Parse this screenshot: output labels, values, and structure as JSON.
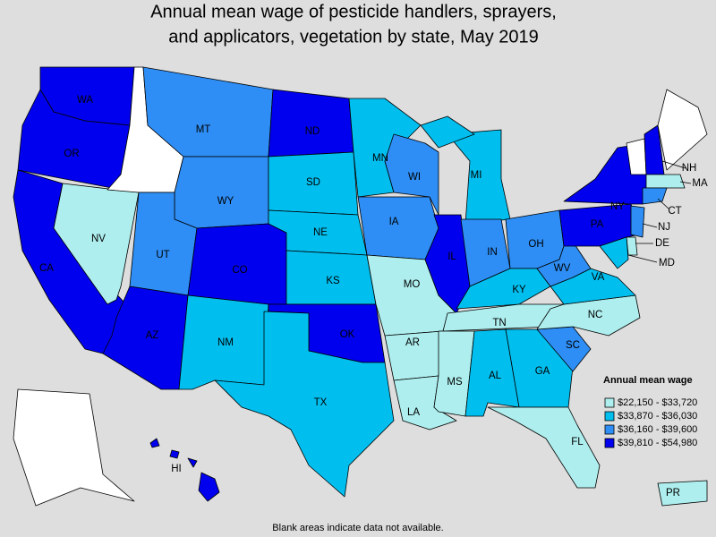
{
  "title": [
    "Annual mean wage of pesticide handlers, sprayers,",
    "and applicators, vegetation by state, May 2019"
  ],
  "legend": {
    "title": "Annual mean wage",
    "bins": [
      {
        "label": "$22,150 - $33,720",
        "color": "#aeeeee"
      },
      {
        "label": "$33,870 - $36,030",
        "color": "#00bfef"
      },
      {
        "label": "$36,160 - $39,600",
        "color": "#2e8ef5"
      },
      {
        "label": "$39,810 - $54,980",
        "color": "#0000ee"
      }
    ]
  },
  "states": [
    {
      "label": "WA",
      "bin": 3
    },
    {
      "label": "OR",
      "bin": 3
    },
    {
      "label": "CA",
      "bin": 3
    },
    {
      "label": "NV",
      "bin": 0
    },
    {
      "label": null,
      "bin": null
    },
    {
      "label": "MT",
      "bin": 2
    },
    {
      "label": "WY",
      "bin": 2
    },
    {
      "label": "UT",
      "bin": 2
    },
    {
      "label": "AZ",
      "bin": 3
    },
    {
      "label": "CO",
      "bin": 3
    },
    {
      "label": "NM",
      "bin": 1
    },
    {
      "label": "ND",
      "bin": 3
    },
    {
      "label": "SD",
      "bin": 1
    },
    {
      "label": "NE",
      "bin": 1
    },
    {
      "label": "KS",
      "bin": 1
    },
    {
      "label": "OK",
      "bin": 3
    },
    {
      "label": "TX",
      "bin": 1
    },
    {
      "label": "MN",
      "bin": 1
    },
    {
      "label": "IA",
      "bin": 2
    },
    {
      "label": "MO",
      "bin": 0
    },
    {
      "label": "AR",
      "bin": 0
    },
    {
      "label": "LA",
      "bin": 0
    },
    {
      "label": "WI",
      "bin": 2
    },
    {
      "label": "IL",
      "bin": 3
    },
    {
      "label": "MI",
      "bin": 1
    },
    {
      "label": "IN",
      "bin": 2
    },
    {
      "label": "OH",
      "bin": 2
    },
    {
      "label": "KY",
      "bin": 1
    },
    {
      "label": "TN",
      "bin": 0
    },
    {
      "label": "MS",
      "bin": 0
    },
    {
      "label": "AL",
      "bin": 1
    },
    {
      "label": "GA",
      "bin": 1
    },
    {
      "label": "FL",
      "bin": 0
    },
    {
      "label": "SC",
      "bin": 2
    },
    {
      "label": "NC",
      "bin": 0
    },
    {
      "label": "VA",
      "bin": 1
    },
    {
      "label": "WV",
      "bin": 2
    },
    {
      "label": "PA",
      "bin": 3
    },
    {
      "label": "NY",
      "bin": 3
    },
    {
      "label": null,
      "bin": null
    },
    {
      "label": "NH",
      "bin": 3
    },
    {
      "label": null,
      "bin": null
    },
    {
      "label": "MA",
      "bin": 0
    },
    {
      "label": "CT",
      "bin": 2
    },
    {
      "label": "NJ",
      "bin": 2
    },
    {
      "label": "DE",
      "bin": 0
    },
    {
      "label": "MD",
      "bin": 1
    },
    {
      "label": "HI",
      "bin": 3
    },
    {
      "label": null,
      "bin": null
    },
    {
      "label": "PR",
      "bin": 0
    }
  ],
  "note": "Blank areas indicate data not available."
}
